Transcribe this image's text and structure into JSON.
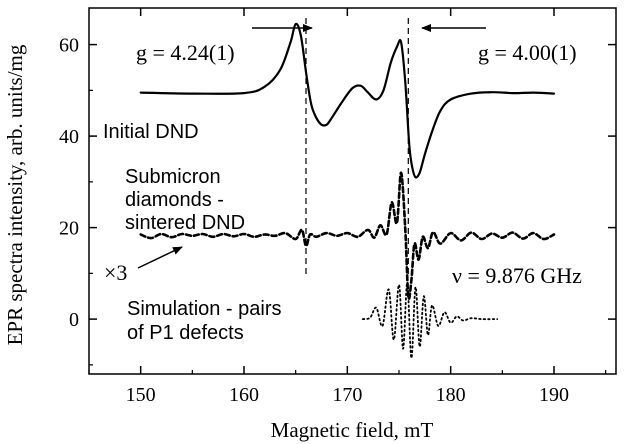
{
  "chart_data": {
    "type": "line",
    "xlabel": "Magnetic field, mT",
    "ylabel": "EPR spectra intensity, arb. units/mg",
    "xlim": [
      145,
      196
    ],
    "ylim": [
      -12,
      68
    ],
    "xticks": [
      150,
      160,
      170,
      180,
      190
    ],
    "yticks": [
      0,
      20,
      40,
      60
    ],
    "grid": false,
    "series": [
      {
        "name": "Initial DND",
        "style": "solid",
        "x": [
          150,
          155,
          160,
          162,
          163.5,
          164.5,
          165.0,
          165.5,
          166.0,
          166.5,
          167.0,
          167.5,
          168.0,
          168.5,
          169.5,
          170.5,
          171.3,
          172.0,
          172.8,
          173.5,
          174.2,
          174.8,
          175.2,
          175.6,
          176.0,
          176.3,
          176.6,
          177.0,
          177.5,
          178.2,
          179.0,
          180.0,
          182.0,
          184.0,
          186.0,
          188.0,
          190.0
        ],
        "y": [
          49.5,
          49.3,
          49.4,
          50.8,
          54.5,
          60.5,
          64.5,
          62,
          54,
          47,
          44,
          42.5,
          42.5,
          44,
          47.5,
          50.5,
          51,
          49.5,
          48,
          50,
          56,
          59.5,
          60.5,
          52,
          38,
          33,
          31,
          32,
          36,
          41,
          45.5,
          48,
          49.3,
          49.6,
          49.4,
          49.5,
          49.3
        ]
      },
      {
        "name": "Submicron diamonds - sintered DND",
        "style": "dashed",
        "x": [
          150,
          151,
          152,
          153,
          154,
          155,
          156,
          157,
          158,
          159,
          160,
          161,
          162,
          163,
          164,
          165,
          165.6,
          166.0,
          166.4,
          167,
          168,
          169,
          170,
          171,
          172,
          172.6,
          173.2,
          173.8,
          174.3,
          174.8,
          175.2,
          175.6,
          175.9,
          176.2,
          176.5,
          176.9,
          177.3,
          177.8,
          178.3,
          179,
          180,
          181,
          182,
          183,
          184,
          185,
          186,
          187,
          188,
          189,
          190
        ],
        "y": [
          18.5,
          17.7,
          18.6,
          17.9,
          18.6,
          18.2,
          18.6,
          18.0,
          18.6,
          18.1,
          18.6,
          18.0,
          18.5,
          18.2,
          18.8,
          17.5,
          19.5,
          16.0,
          18.5,
          18.0,
          18.8,
          18.2,
          18.8,
          18.0,
          19.5,
          17.8,
          20.5,
          18.5,
          25.5,
          21.0,
          32.0,
          20.0,
          5.0,
          8.5,
          16.5,
          13.0,
          18.0,
          15.5,
          19.0,
          16.5,
          18.8,
          17.2,
          18.9,
          17.5,
          18.7,
          17.8,
          18.9,
          17.6,
          18.8,
          17.5,
          18.5
        ]
      },
      {
        "name": "Simulation - pairs of P1 defects",
        "style": "dotted",
        "x": [
          171.5,
          172.2,
          172.8,
          173.4,
          174.0,
          174.5,
          175.0,
          175.4,
          175.8,
          176.2,
          176.6,
          177.0,
          177.4,
          177.8,
          178.2,
          178.8,
          179.4,
          180.0,
          180.6,
          181.2,
          182.0,
          183.0,
          184.5
        ],
        "y": [
          0,
          0.3,
          2.5,
          -1.5,
          6.5,
          -4.5,
          7.5,
          -6.5,
          8.0,
          -8.5,
          7.0,
          -6.0,
          5.0,
          -3.5,
          3.0,
          -1.5,
          1.5,
          -0.8,
          0.6,
          -0.3,
          0.2,
          0,
          0
        ]
      }
    ],
    "annotations": {
      "g_left": "g = 4.24(1)",
      "g_right": "g = 4.00(1)",
      "initial_label": "Initial DND",
      "submicron_line1": "Submicron",
      "submicron_line2": "diamonds -",
      "submicron_line3": "sintered DND",
      "times3": "×3",
      "frequency": "ν = 9.876 GHz",
      "simulation_line1": "Simulation - pairs",
      "simulation_line2": "of P1 defects"
    },
    "reference_lines_x": [
      166.0,
      175.9
    ]
  }
}
